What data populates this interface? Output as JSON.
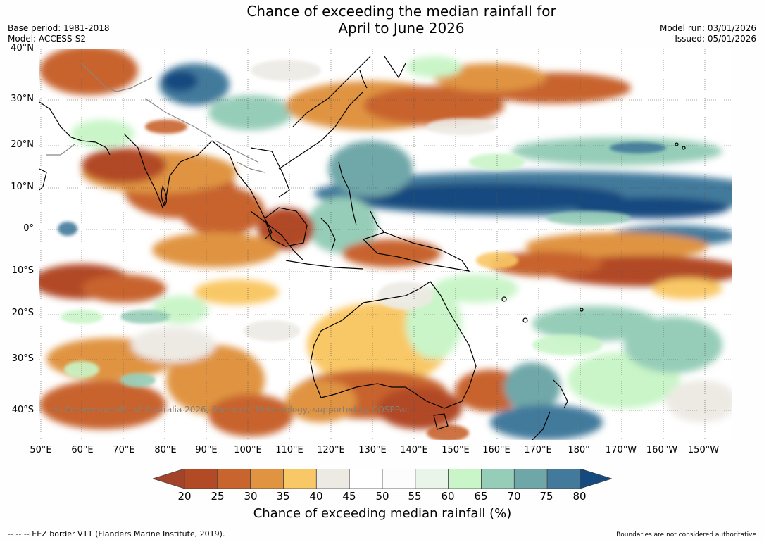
{
  "title_line1": "Chance of exceeding the median rainfall for",
  "title_line2": "April to June 2026",
  "base_period": "Base period: 1981-2018",
  "model": "Model: ACCESS-S2",
  "model_run": "Model run: 03/01/2026",
  "issued": "Issued: 05/01/2026",
  "copyright": "© Commonwealth of Australia 2026, Bureau of Meteorology, supported by COSPPac",
  "lat_labels": [
    "40°N",
    "30°N",
    "20°N",
    "10°N",
    "0°",
    "10°S",
    "20°S",
    "30°S",
    "40°S"
  ],
  "lon_labels": [
    "50°E",
    "60°E",
    "70°E",
    "80°E",
    "90°E",
    "100°E",
    "110°E",
    "120°E",
    "130°E",
    "140°E",
    "150°E",
    "160°E",
    "170°E",
    "180°",
    "170°W",
    "160°W",
    "150°W"
  ],
  "colorbar": {
    "ticks": [
      "20",
      "25",
      "30",
      "35",
      "40",
      "45",
      "50",
      "55",
      "60",
      "65",
      "70",
      "75",
      "80"
    ],
    "colors": [
      "#a4432a",
      "#b24a25",
      "#c8642e",
      "#e09442",
      "#f9c866",
      "#edeae4",
      "#ffffff",
      "#fbfcfb",
      "#e8f5e8",
      "#c9f5c8",
      "#96cdb8",
      "#6fa7a8",
      "#437a9c",
      "#154a7f"
    ],
    "label": "Chance of exceeding median rainfall (%)"
  },
  "footer_left": "--  --  -- EEZ border V11 (Flanders Marine Institute, 2019).",
  "footer_right": "Boundaries are not considered authoritative"
}
